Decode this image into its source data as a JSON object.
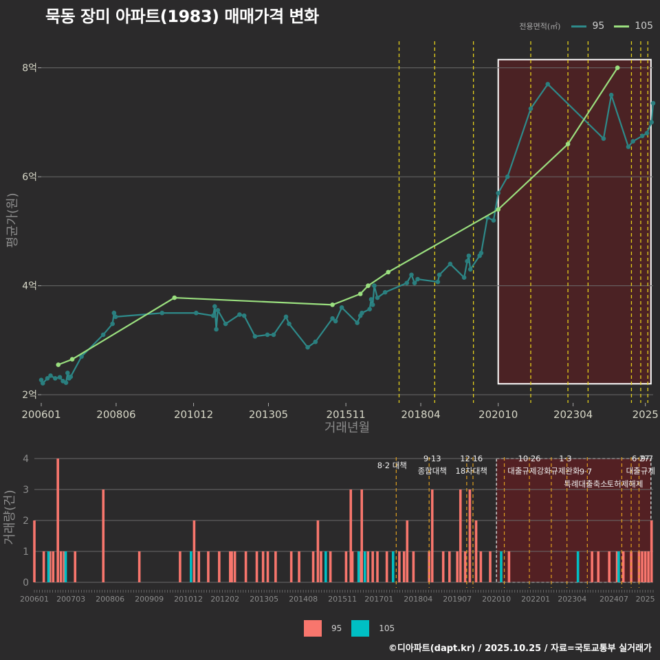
{
  "title": "묵동 장미 아파트(1983) 매매가격 변화",
  "legend_top": {
    "label": "전용면적(㎡)",
    "items": [
      "95",
      "105"
    ]
  },
  "legend_bottom": {
    "items": [
      "95",
      "105"
    ]
  },
  "footer": "©디아파트(dapt.kr) / 2025.10.25 / 자료=국토교통부 실거래가",
  "colors": {
    "bg": "#2b2a2b",
    "series95_line": "#2e8b8b",
    "series95_point": "#2a7f7f",
    "series105": "#9be07f",
    "bar95": "#f8766d",
    "bar105": "#00bfc4",
    "policy": "#e6d21a",
    "highlight_fill": "#5a1f22",
    "grid": "#6b6b6b",
    "text": "#d8d8c8"
  },
  "chart_data": [
    {
      "type": "line",
      "title": "묵동 장미 아파트(1983) 매매가격 변화",
      "xlabel": "거래년월",
      "ylabel": "평균가(원)",
      "xlim": [
        2006.0,
        2025.75
      ],
      "ylim": [
        1.85,
        8.55
      ],
      "x_ticks": [
        {
          "x": 2006.0,
          "label": "200601"
        },
        {
          "x": 2008.417,
          "label": "200806"
        },
        {
          "x": 2010.917,
          "label": "201012"
        },
        {
          "x": 2013.333,
          "label": "201305"
        },
        {
          "x": 2015.833,
          "label": "201511"
        },
        {
          "x": 2018.25,
          "label": "201804"
        },
        {
          "x": 2020.75,
          "label": "202010"
        },
        {
          "x": 2023.167,
          "label": "202304"
        },
        {
          "x": 2025.5,
          "label": "2025"
        }
      ],
      "y_ticks": [
        {
          "y": 2,
          "label": "2억"
        },
        {
          "y": 4,
          "label": "4억"
        },
        {
          "y": 6,
          "label": "6억"
        },
        {
          "y": 8,
          "label": "8억"
        }
      ],
      "policy_lines": [
        2017.55,
        2018.7,
        2019.95,
        2021.8,
        2023.0,
        2023.65,
        2025.05,
        2025.35,
        2025.58
      ],
      "highlight_box": {
        "x0": 2020.75,
        "x1": 2025.68,
        "y0": 2.2,
        "y1": 8.15
      },
      "series": [
        {
          "name": "95",
          "points": [
            [
              2006.0,
              2.27
            ],
            [
              2006.05,
              2.21
            ],
            [
              2006.2,
              2.3
            ],
            [
              2006.3,
              2.35
            ],
            [
              2006.45,
              2.3
            ],
            [
              2006.6,
              2.32
            ],
            [
              2006.7,
              2.25
            ],
            [
              2006.8,
              2.22
            ],
            [
              2006.85,
              2.4
            ],
            [
              2006.9,
              2.3
            ],
            [
              2006.95,
              2.33
            ],
            [
              2007.3,
              2.7
            ],
            [
              2008.0,
              3.1
            ],
            [
              2008.3,
              3.3
            ],
            [
              2008.35,
              3.5
            ],
            [
              2008.4,
              3.43
            ],
            [
              2009.9,
              3.5
            ],
            [
              2011.0,
              3.5
            ],
            [
              2011.55,
              3.45
            ],
            [
              2011.6,
              3.62
            ],
            [
              2011.65,
              3.2
            ],
            [
              2011.7,
              3.55
            ],
            [
              2011.95,
              3.3
            ],
            [
              2012.4,
              3.47
            ],
            [
              2012.55,
              3.45
            ],
            [
              2012.9,
              3.07
            ],
            [
              2013.3,
              3.1
            ],
            [
              2013.5,
              3.1
            ],
            [
              2013.9,
              3.43
            ],
            [
              2014.0,
              3.3
            ],
            [
              2014.6,
              2.87
            ],
            [
              2014.85,
              2.97
            ],
            [
              2015.4,
              3.4
            ],
            [
              2015.5,
              3.35
            ],
            [
              2015.7,
              3.6
            ],
            [
              2016.2,
              3.32
            ],
            [
              2016.3,
              3.45
            ],
            [
              2016.35,
              3.5
            ],
            [
              2016.6,
              3.57
            ],
            [
              2016.65,
              3.75
            ],
            [
              2016.7,
              3.65
            ],
            [
              2016.75,
              4.0
            ],
            [
              2016.85,
              3.78
            ],
            [
              2017.1,
              3.88
            ],
            [
              2017.8,
              4.05
            ],
            [
              2017.95,
              4.2
            ],
            [
              2018.05,
              4.05
            ],
            [
              2018.15,
              4.12
            ],
            [
              2018.8,
              4.07
            ],
            [
              2018.85,
              4.2
            ],
            [
              2019.2,
              4.4
            ],
            [
              2019.65,
              4.15
            ],
            [
              2019.75,
              4.45
            ],
            [
              2019.8,
              4.55
            ],
            [
              2019.85,
              4.3
            ],
            [
              2020.15,
              4.55
            ],
            [
              2020.2,
              4.6
            ],
            [
              2020.4,
              5.25
            ],
            [
              2020.6,
              5.2
            ],
            [
              2020.75,
              5.7
            ],
            [
              2021.05,
              6.0
            ],
            [
              2021.8,
              7.25
            ],
            [
              2022.35,
              7.7
            ],
            [
              2024.15,
              6.7
            ],
            [
              2024.4,
              7.5
            ],
            [
              2024.95,
              6.55
            ],
            [
              2025.1,
              6.65
            ],
            [
              2025.4,
              6.75
            ],
            [
              2025.55,
              6.8
            ],
            [
              2025.7,
              7.0
            ],
            [
              2025.75,
              7.35
            ]
          ]
        },
        {
          "name": "105",
          "points": [
            [
              2006.55,
              2.55
            ],
            [
              2007.0,
              2.65
            ],
            [
              2010.3,
              3.78
            ],
            [
              2015.4,
              3.65
            ],
            [
              2016.3,
              3.85
            ],
            [
              2016.55,
              4.0
            ],
            [
              2017.2,
              4.25
            ],
            [
              2020.75,
              5.4
            ],
            [
              2023.0,
              6.6
            ],
            [
              2024.6,
              8.0
            ]
          ]
        }
      ]
    },
    {
      "type": "bar",
      "xlabel": "",
      "ylabel": "거래량(건)",
      "xlim": [
        2006.0,
        2025.75
      ],
      "ylim": [
        0,
        4.2
      ],
      "x_ticks": [
        {
          "x": 2006.0,
          "label": "200601"
        },
        {
          "x": 2007.167,
          "label": "200703"
        },
        {
          "x": 2008.417,
          "label": "200806"
        },
        {
          "x": 2009.667,
          "label": "200909"
        },
        {
          "x": 2010.917,
          "label": "201012"
        },
        {
          "x": 2012.083,
          "label": "201202"
        },
        {
          "x": 2013.333,
          "label": "201305"
        },
        {
          "x": 2014.583,
          "label": "201408"
        },
        {
          "x": 2015.833,
          "label": "201511"
        },
        {
          "x": 2017.0,
          "label": "201701"
        },
        {
          "x": 2018.25,
          "label": "201804"
        },
        {
          "x": 2019.5,
          "label": "201907"
        },
        {
          "x": 2020.75,
          "label": "202010"
        },
        {
          "x": 2022.0,
          "label": "202201"
        },
        {
          "x": 2023.167,
          "label": "202304"
        },
        {
          "x": 2024.5,
          "label": "202407"
        },
        {
          "x": 2025.5,
          "label": "2025"
        }
      ],
      "y_ticks": [
        0,
        1,
        2,
        3,
        4
      ],
      "policy_lines": [
        2017.55,
        2018.6,
        2019.8,
        2020.0,
        2021.0,
        2021.8,
        2022.5,
        2023.0,
        2023.65,
        2024.75,
        2025.05,
        2025.3
      ],
      "highlight_box": {
        "x0": 2020.75,
        "x1": 2025.68,
        "y0": 0,
        "y1": 4
      },
      "annotations": [
        {
          "x": 2017.55,
          "lines": [
            "8·2 대책"
          ]
        },
        {
          "x": 2018.7,
          "lines": [
            "9·13",
            "종합대책"
          ]
        },
        {
          "x": 2019.95,
          "lines": [
            "12·16",
            "18차대책"
          ]
        },
        {
          "x": 2021.8,
          "lines": [
            "10·26",
            "대출규제강화"
          ]
        },
        {
          "x": 2022.95,
          "lines": [
            "1·3",
            "규제완화"
          ]
        },
        {
          "x": 2023.6,
          "lines": [
            "9·7",
            "특례대출축소"
          ]
        },
        {
          "x": 2024.85,
          "lines": [
            "토허제해제"
          ]
        },
        {
          "x": 2025.35,
          "lines": [
            "6·27",
            "대출규제"
          ]
        },
        {
          "x": 2025.55,
          "lines": [
            "9·7",
            ""
          ]
        }
      ],
      "series": [
        {
          "name": "95",
          "bars": [
            [
              2006.0,
              2
            ],
            [
              2006.3,
              1
            ],
            [
              2006.5,
              1
            ],
            [
              2006.6,
              1
            ],
            [
              2006.75,
              4
            ],
            [
              2006.85,
              1
            ],
            [
              2006.95,
              1
            ],
            [
              2007.3,
              1
            ],
            [
              2008.2,
              3
            ],
            [
              2009.35,
              1
            ],
            [
              2010.65,
              1
            ],
            [
              2011.1,
              2
            ],
            [
              2011.25,
              1
            ],
            [
              2011.55,
              1
            ],
            [
              2011.9,
              1
            ],
            [
              2012.25,
              1
            ],
            [
              2012.3,
              1
            ],
            [
              2012.4,
              1
            ],
            [
              2012.75,
              1
            ],
            [
              2013.1,
              1
            ],
            [
              2013.3,
              1
            ],
            [
              2013.45,
              1
            ],
            [
              2013.7,
              1
            ],
            [
              2014.2,
              1
            ],
            [
              2014.45,
              1
            ],
            [
              2014.9,
              1
            ],
            [
              2015.05,
              2
            ],
            [
              2015.15,
              1
            ],
            [
              2015.45,
              1
            ],
            [
              2015.95,
              1
            ],
            [
              2016.1,
              3
            ],
            [
              2016.15,
              1
            ],
            [
              2016.4,
              1
            ],
            [
              2016.45,
              3
            ],
            [
              2016.65,
              1
            ],
            [
              2016.8,
              1
            ],
            [
              2016.95,
              1
            ],
            [
              2017.25,
              1
            ],
            [
              2017.65,
              1
            ],
            [
              2017.8,
              1
            ],
            [
              2017.9,
              2
            ],
            [
              2018.1,
              1
            ],
            [
              2018.6,
              1
            ],
            [
              2018.7,
              3
            ],
            [
              2019.05,
              1
            ],
            [
              2019.25,
              1
            ],
            [
              2019.5,
              1
            ],
            [
              2019.6,
              3
            ],
            [
              2019.75,
              1
            ],
            [
              2019.9,
              3
            ],
            [
              2020.1,
              2
            ],
            [
              2020.25,
              1
            ],
            [
              2020.55,
              1
            ],
            [
              2021.15,
              1
            ],
            [
              2023.8,
              1
            ],
            [
              2024.0,
              1
            ],
            [
              2024.35,
              1
            ],
            [
              2024.6,
              1
            ],
            [
              2024.8,
              1
            ],
            [
              2025.05,
              1
            ],
            [
              2025.3,
              1
            ],
            [
              2025.4,
              1
            ],
            [
              2025.5,
              1
            ],
            [
              2025.6,
              1
            ],
            [
              2025.7,
              2
            ]
          ]
        },
        {
          "name": "105",
          "bars": [
            [
              2006.45,
              1
            ],
            [
              2007.0,
              1
            ],
            [
              2011.0,
              1
            ],
            [
              2015.3,
              1
            ],
            [
              2016.35,
              1
            ],
            [
              2016.55,
              1
            ],
            [
              2017.45,
              1
            ],
            [
              2020.9,
              1
            ],
            [
              2023.35,
              1
            ],
            [
              2024.65,
              1
            ]
          ]
        }
      ]
    }
  ]
}
